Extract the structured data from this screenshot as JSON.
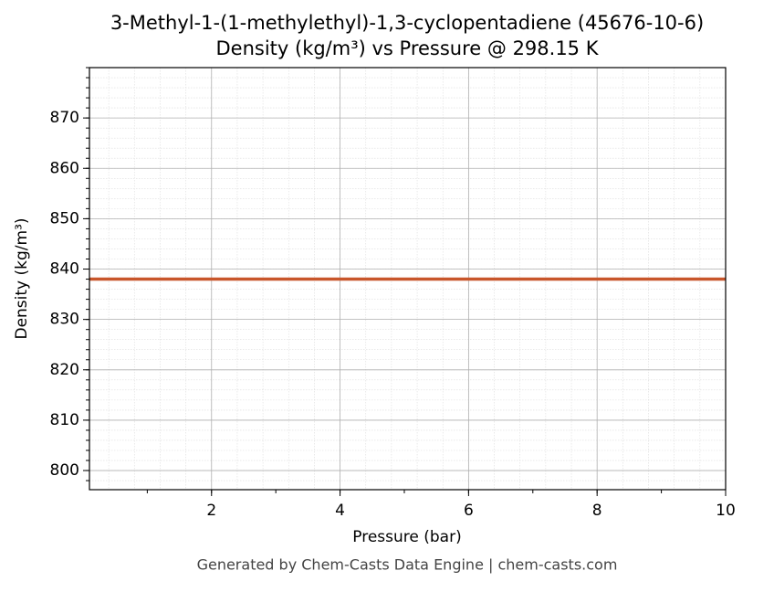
{
  "chart_data": {
    "type": "line",
    "title": "3-Methyl-1-(1-methylethyl)-1,3-cyclopentadiene (45676-10-6)",
    "subtitle": "Density (kg/m³) vs Pressure @ 298.15 K",
    "x_label": "Pressure (bar)",
    "y_label": "Density (kg/m³)",
    "footer": "Generated by Chem-Casts Data Engine | chem-casts.com",
    "x": [
      0.1,
      10
    ],
    "series": [
      {
        "color": "#c8562b",
        "values": [
          838,
          838
        ]
      }
    ],
    "xlim": [
      0.1,
      10
    ],
    "xticks": [
      2,
      4,
      6,
      8,
      10
    ],
    "ylim": [
      796.2,
      880
    ],
    "yticks": [
      800,
      810,
      820,
      830,
      840,
      850,
      860,
      870
    ],
    "grid": true
  }
}
